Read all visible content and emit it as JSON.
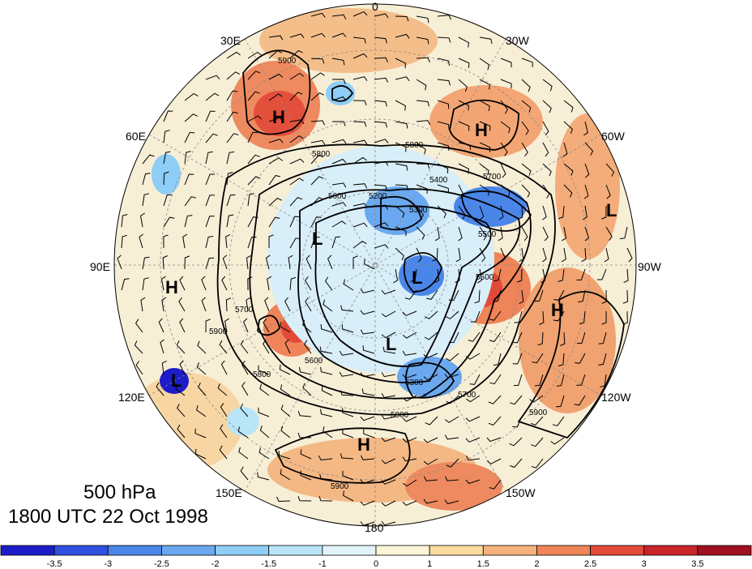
{
  "title": {
    "level": "500 hPa",
    "time": "1800 UTC 22 Oct 1998"
  },
  "longitude_labels": {
    "lon_0": "0",
    "lon_30w": "30W",
    "lon_60w": "60W",
    "lon_90w": "90W",
    "lon_120w": "120W",
    "lon_150w": "150W",
    "lon_180": "180",
    "lon_150e": "150E",
    "lon_120e": "120E",
    "lon_90e": "90E",
    "lon_60e": "60E",
    "lon_30e": "30E"
  },
  "pressure_centers": [
    {
      "label": "H"
    },
    {
      "label": "H"
    },
    {
      "label": "H"
    },
    {
      "label": "H"
    },
    {
      "label": "H"
    },
    {
      "label": "L"
    },
    {
      "label": "L"
    },
    {
      "label": "L"
    },
    {
      "label": "L"
    },
    {
      "label": "L"
    }
  ],
  "contour_labels": [
    "5900",
    "5800",
    "5800",
    "5700",
    "5400",
    "5300",
    "5300",
    "5200",
    "5600",
    "5500",
    "5500",
    "5700",
    "5800",
    "5900",
    "5900",
    "5900",
    "5700",
    "5800",
    "5600"
  ],
  "colorbar": {
    "ticks": [
      "-3.5",
      "-3",
      "-2.5",
      "-2",
      "-1.5",
      "-1",
      "0",
      "1",
      "1.5",
      "2",
      "2.5",
      "3",
      "3.5"
    ],
    "colors": [
      "#1c1cc8",
      "#3050e0",
      "#4a86ea",
      "#6aa8f0",
      "#8ecdf5",
      "#b8e6f8",
      "#e2f4fa",
      "#fdf5d8",
      "#fadca0",
      "#f6b27a",
      "#ee8458",
      "#e24a38",
      "#c8242a",
      "#a01020"
    ]
  }
}
